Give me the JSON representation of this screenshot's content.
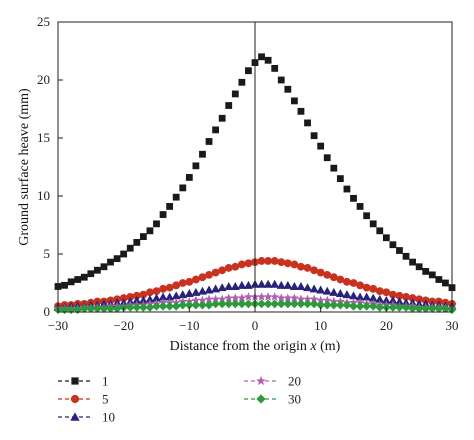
{
  "chart_data": {
    "type": "scatter",
    "title": "",
    "xlabel_prefix": "Distance from the origin ",
    "xlabel_var": "x",
    "xlabel_suffix": " (m)",
    "ylabel": "Ground surface heave (mm)",
    "xlim": [
      -30,
      30
    ],
    "ylim": [
      0,
      25
    ],
    "xticks": [
      -30,
      -20,
      -10,
      0,
      10,
      20,
      30
    ],
    "yticks": [
      0,
      5,
      10,
      15,
      20,
      25
    ],
    "x_step": 1,
    "grid": false,
    "vertical_line_at": 0,
    "legend_placement": "bottom",
    "series": [
      {
        "name": "1",
        "marker": "square",
        "color": "#1a1a1a",
        "values": [
          2.2,
          2.3,
          2.6,
          2.8,
          3.0,
          3.3,
          3.6,
          3.9,
          4.3,
          4.6,
          5.0,
          5.5,
          6.0,
          6.5,
          7.0,
          7.6,
          8.4,
          9.1,
          9.9,
          10.7,
          11.6,
          12.6,
          13.6,
          14.7,
          15.7,
          16.7,
          17.8,
          18.8,
          19.8,
          20.8,
          21.5,
          22.0,
          21.7,
          21.0,
          20.0,
          19.2,
          18.2,
          17.3,
          16.3,
          15.2,
          14.3,
          13.3,
          12.4,
          11.5,
          10.6,
          9.8,
          9.1,
          8.3,
          7.6,
          7.0,
          6.4,
          5.8,
          5.3,
          4.8,
          4.3,
          3.9,
          3.5,
          3.2,
          2.8,
          2.5,
          2.1
        ]
      },
      {
        "name": "5",
        "marker": "circle",
        "color": "#c8321e",
        "values": [
          0.5,
          0.6,
          0.6,
          0.7,
          0.7,
          0.8,
          0.9,
          0.9,
          1.0,
          1.1,
          1.2,
          1.3,
          1.4,
          1.5,
          1.7,
          1.8,
          2.0,
          2.1,
          2.3,
          2.5,
          2.6,
          2.8,
          3.0,
          3.2,
          3.4,
          3.6,
          3.8,
          3.9,
          4.1,
          4.2,
          4.3,
          4.4,
          4.4,
          4.4,
          4.3,
          4.2,
          4.1,
          3.9,
          3.8,
          3.6,
          3.4,
          3.2,
          3.0,
          2.8,
          2.6,
          2.5,
          2.3,
          2.1,
          2.0,
          1.8,
          1.7,
          1.5,
          1.4,
          1.3,
          1.2,
          1.1,
          1.0,
          0.9,
          0.9,
          0.8,
          0.7
        ]
      },
      {
        "name": "10",
        "marker": "triangle",
        "color": "#28237a",
        "values": [
          0.4,
          0.4,
          0.5,
          0.5,
          0.5,
          0.6,
          0.6,
          0.7,
          0.7,
          0.8,
          0.8,
          0.9,
          1.0,
          1.0,
          1.1,
          1.2,
          1.3,
          1.3,
          1.4,
          1.5,
          1.6,
          1.7,
          1.8,
          1.9,
          2.0,
          2.1,
          2.2,
          2.2,
          2.3,
          2.3,
          2.4,
          2.4,
          2.4,
          2.4,
          2.3,
          2.3,
          2.2,
          2.2,
          2.1,
          2.0,
          1.9,
          1.8,
          1.7,
          1.6,
          1.5,
          1.4,
          1.3,
          1.3,
          1.2,
          1.1,
          1.0,
          1.0,
          0.9,
          0.8,
          0.8,
          0.7,
          0.7,
          0.6,
          0.6,
          0.5,
          0.5
        ]
      },
      {
        "name": "20",
        "marker": "star",
        "color": "#b35fb3",
        "values": [
          0.3,
          0.3,
          0.3,
          0.3,
          0.4,
          0.4,
          0.4,
          0.4,
          0.5,
          0.5,
          0.5,
          0.6,
          0.6,
          0.6,
          0.7,
          0.7,
          0.8,
          0.8,
          0.8,
          0.9,
          0.9,
          1.0,
          1.0,
          1.1,
          1.1,
          1.1,
          1.2,
          1.2,
          1.2,
          1.3,
          1.3,
          1.3,
          1.3,
          1.3,
          1.2,
          1.2,
          1.2,
          1.1,
          1.1,
          1.1,
          1.0,
          1.0,
          0.9,
          0.9,
          0.8,
          0.8,
          0.8,
          0.7,
          0.7,
          0.6,
          0.6,
          0.6,
          0.5,
          0.5,
          0.5,
          0.4,
          0.4,
          0.4,
          0.4,
          0.3,
          0.3
        ]
      },
      {
        "name": "30",
        "marker": "diamond",
        "color": "#2e9a3c",
        "values": [
          0.2,
          0.2,
          0.2,
          0.2,
          0.3,
          0.3,
          0.3,
          0.3,
          0.3,
          0.3,
          0.4,
          0.4,
          0.4,
          0.4,
          0.4,
          0.5,
          0.5,
          0.5,
          0.5,
          0.6,
          0.6,
          0.6,
          0.6,
          0.6,
          0.7,
          0.7,
          0.7,
          0.7,
          0.7,
          0.7,
          0.7,
          0.7,
          0.7,
          0.7,
          0.7,
          0.7,
          0.7,
          0.7,
          0.7,
          0.7,
          0.6,
          0.6,
          0.6,
          0.6,
          0.6,
          0.5,
          0.5,
          0.5,
          0.5,
          0.4,
          0.4,
          0.4,
          0.4,
          0.4,
          0.3,
          0.3,
          0.3,
          0.3,
          0.3,
          0.3,
          0.2
        ]
      }
    ]
  }
}
